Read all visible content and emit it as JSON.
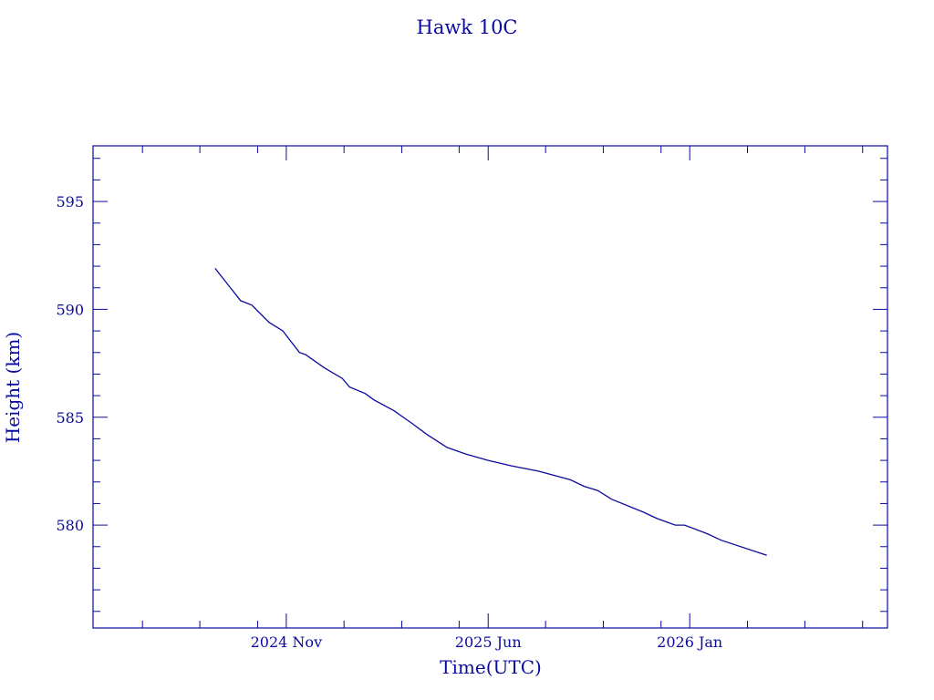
{
  "chart_data": {
    "type": "line",
    "title": "Hawk 10C",
    "xlabel": "Time(UTC)",
    "ylabel": "Height (km)",
    "x_units": "decimal year",
    "xlim": [
      2024.274,
      2026.572
    ],
    "ylim": [
      575.23,
      597.58
    ],
    "grid": false,
    "color": "#0a0aa0",
    "x_ticks": [
      {
        "value": 2024.833,
        "label": "2024 Nov"
      },
      {
        "value": 2025.417,
        "label": "2025 Jun"
      },
      {
        "value": 2026.0,
        "label": "2026 Jan"
      }
    ],
    "x_minor_ticks": [
      2024.417,
      2024.583,
      2024.75,
      2025.0,
      2025.167,
      2025.333,
      2025.583,
      2025.75,
      2025.917,
      2026.167,
      2026.333,
      2026.5
    ],
    "y_ticks": [
      {
        "value": 580,
        "label": "580"
      },
      {
        "value": 585,
        "label": "585"
      },
      {
        "value": 590,
        "label": "590"
      },
      {
        "value": 595,
        "label": "595"
      }
    ],
    "y_minor_step": 1,
    "series": [
      {
        "name": "Hawk 10C",
        "x": [
          2024.627,
          2024.701,
          2024.733,
          2024.783,
          2024.823,
          2024.871,
          2024.889,
          2024.942,
          2024.995,
          2025.016,
          2025.061,
          2025.087,
          2025.145,
          2025.18,
          2025.198,
          2025.24,
          2025.298,
          2025.351,
          2025.417,
          2025.483,
          2025.562,
          2025.655,
          2025.694,
          2025.734,
          2025.774,
          2025.866,
          2025.906,
          2025.958,
          2025.985,
          2026.051,
          2026.091,
          2026.223
        ],
        "y": [
          591.9,
          590.4,
          590.2,
          589.4,
          589.0,
          588.0,
          587.9,
          587.3,
          586.8,
          586.4,
          586.1,
          585.8,
          585.3,
          584.9,
          584.7,
          584.2,
          583.6,
          583.3,
          583.0,
          582.75,
          582.5,
          582.1,
          581.8,
          581.6,
          581.2,
          580.6,
          580.3,
          580.0,
          580.0,
          579.6,
          579.3,
          578.6
        ]
      }
    ]
  }
}
